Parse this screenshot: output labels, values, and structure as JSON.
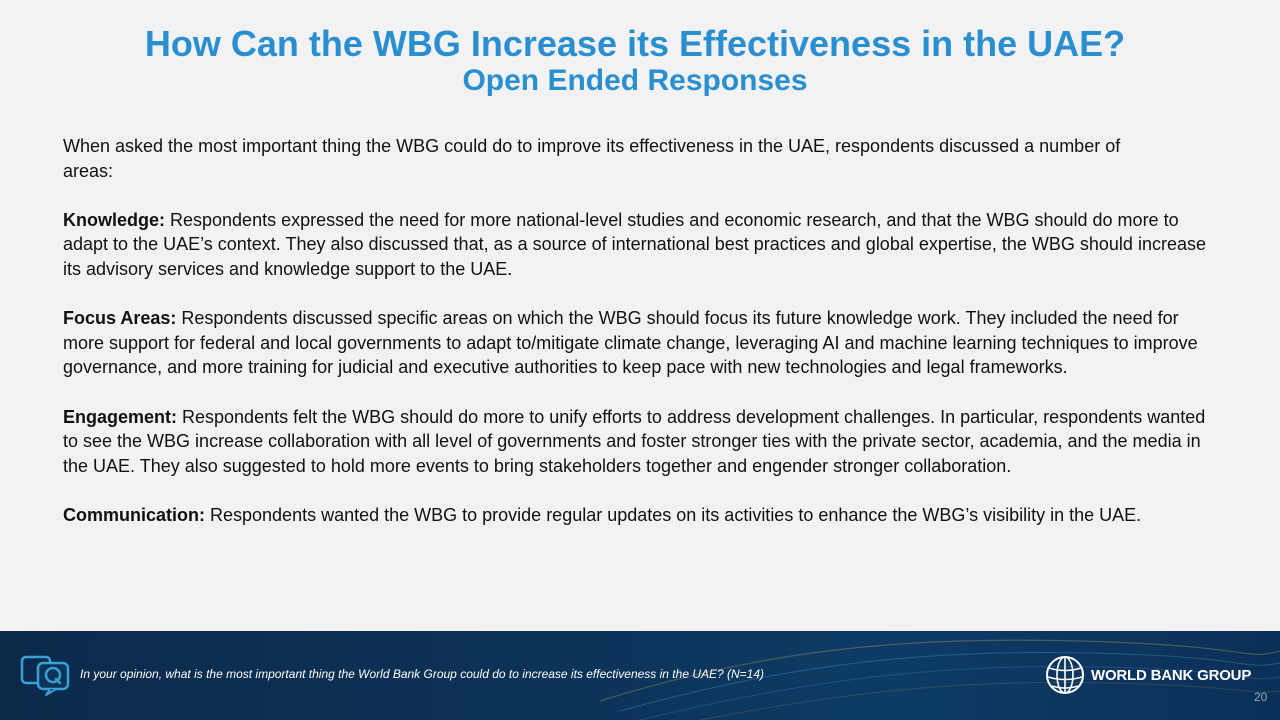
{
  "slide": {
    "title": "How Can the WBG Increase its Effectiveness in the UAE?",
    "subtitle": "Open Ended Responses"
  },
  "body": {
    "intro": "When asked the most important thing the WBG could do to improve its effectiveness in the UAE, respondents discussed a number of areas:",
    "sections": [
      {
        "heading": "Knowledge:",
        "text": " Respondents expressed the need for more national-level studies and economic research, and that the WBG should do more to adapt to the UAE’s context. They also discussed that, as a source of international best practices and global expertise, the WBG should increase its advisory services and knowledge support to the UAE."
      },
      {
        "heading": "Focus Areas:",
        "text": " Respondents discussed specific areas on which the WBG should focus its future knowledge work. They included the need for more support for federal and local governments to adapt to/mitigate climate change, leveraging AI and machine learning techniques to improve governance, and more training for judicial and executive authorities to keep pace with new technologies and legal frameworks."
      },
      {
        "heading": "Engagement:",
        "text": " Respondents felt the WBG should do more to unify efforts to address development challenges. In particular, respondents wanted to see the WBG increase collaboration with all level of governments and foster stronger ties with the private sector, academia, and the media in the UAE. They also suggested to hold more events to bring stakeholders together and engender stronger collaboration."
      },
      {
        "heading": "Communication:",
        "text": " Respondents wanted the WBG to provide regular updates on its activities to enhance the WBG’s visibility in the UAE."
      }
    ]
  },
  "footer": {
    "footnote": "In your opinion, what is the most important thing the World Bank Group could do to increase its effectiveness in the UAE? (N=14)",
    "question_icon": "question-chat-icon",
    "logo_icon": "world-bank-globe-icon",
    "org_name": "WORLD BANK GROUP",
    "page_number": "20"
  },
  "colors": {
    "title": "#2a8fd0",
    "background": "#f2f2f2",
    "footer": "#0c3358",
    "icon_accent": "#3aa0d8"
  }
}
